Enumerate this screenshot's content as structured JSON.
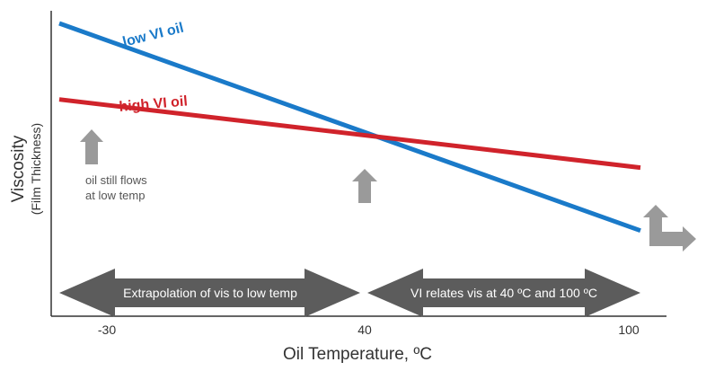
{
  "chart_data": {
    "type": "line",
    "xlabel": "Oil Temperature, ºC",
    "ylabel": "Viscosity",
    "ylabel_sub": "(Film Thickness)",
    "x_ticks": [
      "-30",
      "40",
      "100"
    ],
    "x_tick_values": [
      -30,
      40,
      100
    ],
    "grid": false,
    "series": [
      {
        "name": "low VI oil",
        "color": "#1a7ac9",
        "x": [
          -30,
          100
        ],
        "y": [
          1.0,
          0.21
        ]
      },
      {
        "name": "high VI oil",
        "color": "#d0232b",
        "x": [
          -30,
          100
        ],
        "y": [
          0.71,
          0.45
        ]
      }
    ],
    "annotations": {
      "note": [
        "oil still flows",
        "at low temp"
      ],
      "arrow_left": "Extrapolation of vis to low temp",
      "arrow_right": "VI relates vis at 40 ºC and 100 ºC"
    },
    "icons": [
      "up-arrow-icon",
      "up-arrow-icon",
      "up-right-arrow-icon"
    ]
  }
}
